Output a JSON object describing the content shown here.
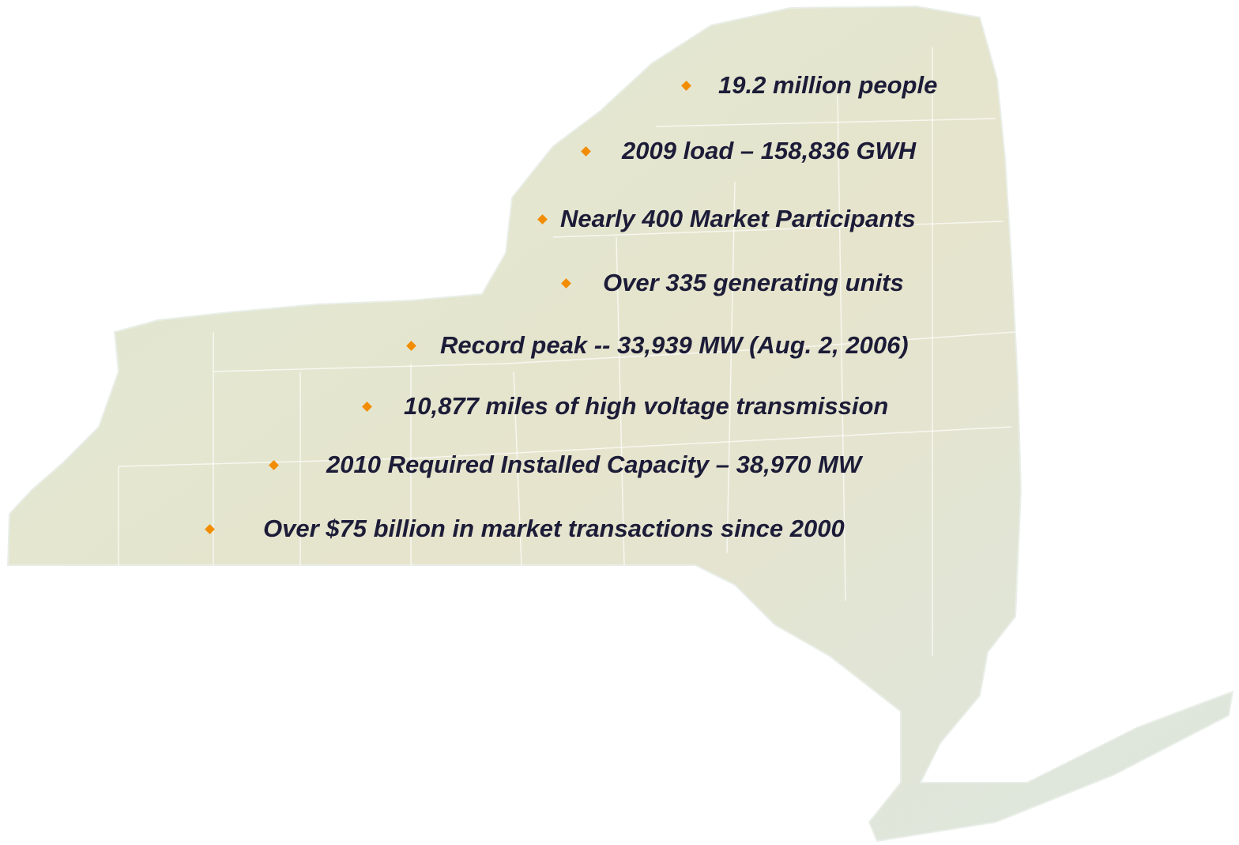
{
  "bullets": [
    "19.2 million people",
    "2009 load – 158,836 GWH",
    "Nearly 400 Market Participants",
    "Over 335 generating units",
    "Record peak -- 33,939 MW (Aug. 2, 2006)",
    "10,877 miles of high voltage transmission",
    "2010 Required Installed Capacity – 38,970 MW",
    "Over $75 billion in market transactions since 2000"
  ]
}
